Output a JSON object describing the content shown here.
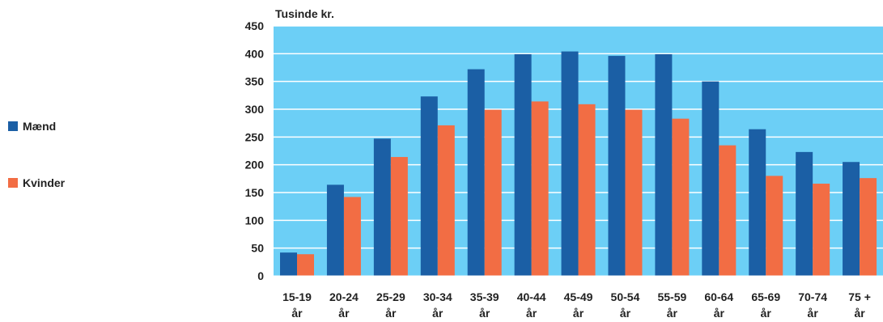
{
  "chart_data": {
    "type": "bar",
    "ylabel": "Tusinde kr.",
    "ylim": [
      0,
      450
    ],
    "yticks": [
      0,
      50,
      100,
      150,
      200,
      250,
      300,
      350,
      400,
      450
    ],
    "grid": true,
    "legend_position": "left",
    "plot_background": "#6ccff6",
    "categories": [
      [
        "15-19",
        "år"
      ],
      [
        "20-24",
        "år"
      ],
      [
        "25-29",
        "år"
      ],
      [
        "30-34",
        "år"
      ],
      [
        "35-39",
        "år"
      ],
      [
        "40-44",
        "år"
      ],
      [
        "45-49",
        "år"
      ],
      [
        "50-54",
        "år"
      ],
      [
        "55-59",
        "år"
      ],
      [
        "60-64",
        "år"
      ],
      [
        "65-69",
        "år"
      ],
      [
        "70-74",
        "år"
      ],
      [
        "75 +",
        "år"
      ]
    ],
    "series": [
      {
        "name": "Mænd",
        "color": "#1b5fa5",
        "values": [
          42,
          164,
          247,
          323,
          372,
          399,
          404,
          396,
          399,
          350,
          264,
          223,
          205
        ]
      },
      {
        "name": "Kvinder",
        "color": "#f26d44",
        "values": [
          39,
          142,
          214,
          271,
          299,
          314,
          309,
          299,
          283,
          235,
          180,
          166,
          176
        ]
      }
    ]
  }
}
